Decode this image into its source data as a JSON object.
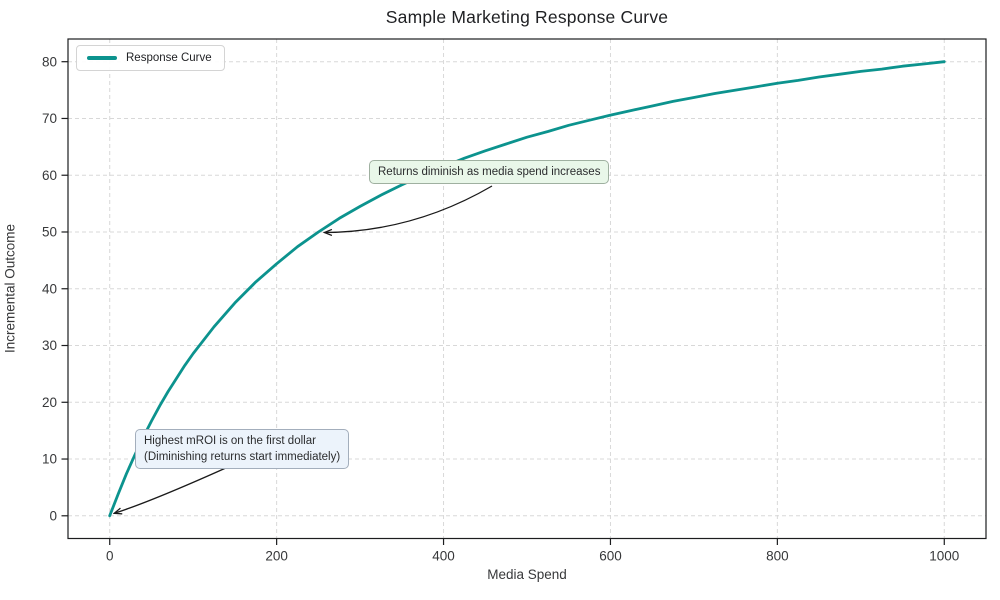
{
  "chart_data": {
    "type": "line",
    "title": "Sample Marketing Response Curve",
    "xlabel": "Media Spend",
    "ylabel": "Incremental Outcome",
    "x_ticks": [
      0,
      200,
      400,
      600,
      800,
      1000
    ],
    "y_ticks": [
      0,
      10,
      20,
      30,
      40,
      50,
      60,
      70,
      80
    ],
    "xlim": [
      -50,
      1050
    ],
    "ylim": [
      -4,
      84
    ],
    "grid": true,
    "grid_style": "dashed",
    "legend_position": "upper left",
    "series": [
      {
        "name": "Response Curve",
        "color": "#0c938e",
        "x": [
          0,
          10,
          20,
          30,
          40,
          50,
          60,
          70,
          80,
          90,
          100,
          125,
          150,
          175,
          200,
          225,
          250,
          275,
          300,
          325,
          350,
          375,
          400,
          425,
          450,
          475,
          500,
          525,
          550,
          575,
          600,
          625,
          650,
          675,
          700,
          725,
          750,
          775,
          800,
          825,
          850,
          875,
          900,
          925,
          950,
          975,
          1000
        ],
        "y": [
          0,
          3.8,
          7.4,
          10.7,
          13.8,
          16.7,
          19.4,
          21.9,
          24.2,
          26.5,
          28.6,
          33.3,
          37.5,
          41.2,
          44.4,
          47.4,
          50,
          52.4,
          54.5,
          56.5,
          58.3,
          60,
          61.5,
          63,
          64.3,
          65.5,
          66.7,
          67.7,
          68.8,
          69.7,
          70.6,
          71.4,
          72.2,
          73,
          73.7,
          74.4,
          75,
          75.6,
          76.2,
          76.7,
          77.3,
          77.8,
          78.3,
          78.7,
          79.2,
          79.6,
          80
        ]
      }
    ],
    "annotations": [
      {
        "text": "Returns diminish as media spend increases",
        "target_x": 250,
        "target_y": 50,
        "box_fill": "#e9f7e9",
        "box_border": "#9fb0a0"
      },
      {
        "text": "Highest mROI is on the first dollar\n(Diminishing returns start immediately)",
        "target_x": 0,
        "target_y": 0,
        "box_fill": "#ecf3fb",
        "box_border": "#a3aebc"
      }
    ]
  },
  "legend": {
    "items": [
      {
        "label": "Response Curve",
        "color": "#0c938e"
      }
    ]
  },
  "style_colors": {
    "curve": "#0c938e",
    "gridline": "#d8d8d8",
    "spine": "#1c1d1f",
    "arrow": "#1a1a1a"
  }
}
